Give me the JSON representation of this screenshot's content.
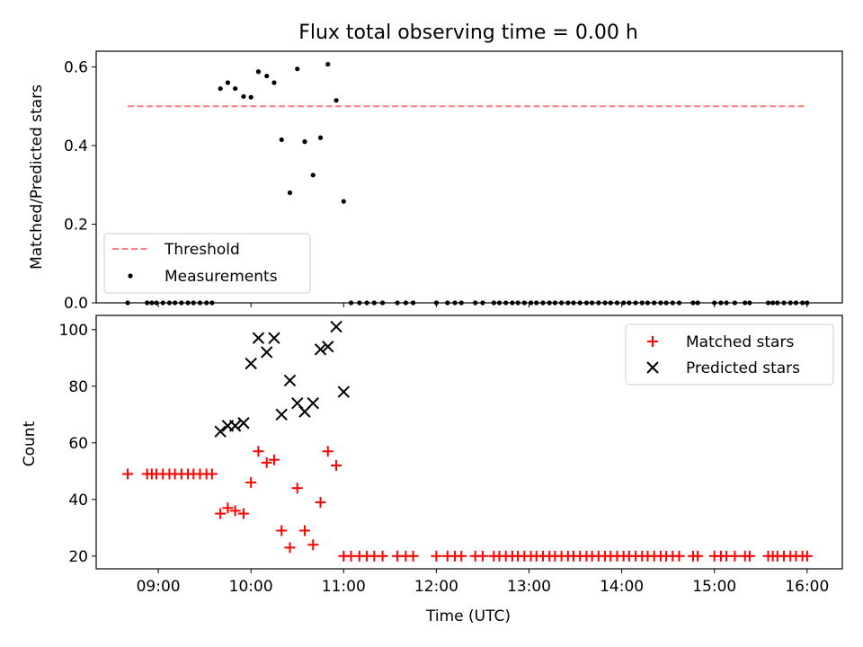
{
  "chart_data": [
    {
      "type": "scatter",
      "title": "Flux total observing time = 0.00 h",
      "xlabel": "",
      "ylabel": "Matched/Predicted stars",
      "xlim": [
        8.33,
        16.38
      ],
      "ylim": [
        0,
        0.64
      ],
      "yticks": [
        0,
        0.2,
        0.4,
        0.6
      ],
      "ytick_labels": [
        "0.0",
        "0.2",
        "0.4",
        "0.6"
      ],
      "threshold": {
        "name": "Threshold",
        "value": 0.5,
        "x_range": [
          8.67,
          16.0
        ],
        "color": "#ff7f7f",
        "style": "dashed"
      },
      "series": [
        {
          "name": "Measurements",
          "color": "#000000",
          "points": [
            [
              8.67,
              0.0
            ],
            [
              8.88,
              0.0
            ],
            [
              8.93,
              0.0
            ],
            [
              8.98,
              0.0
            ],
            [
              9.05,
              0.0
            ],
            [
              9.12,
              0.0
            ],
            [
              9.18,
              0.0
            ],
            [
              9.25,
              0.0
            ],
            [
              9.32,
              0.0
            ],
            [
              9.38,
              0.0
            ],
            [
              9.45,
              0.0
            ],
            [
              9.52,
              0.0
            ],
            [
              9.58,
              0.0
            ],
            [
              9.67,
              0.545
            ],
            [
              9.75,
              0.56
            ],
            [
              9.83,
              0.545
            ],
            [
              9.92,
              0.525
            ],
            [
              10.0,
              0.523
            ],
            [
              10.08,
              0.588
            ],
            [
              10.17,
              0.577
            ],
            [
              10.25,
              0.56
            ],
            [
              10.33,
              0.415
            ],
            [
              10.42,
              0.28
            ],
            [
              10.5,
              0.595
            ],
            [
              10.58,
              0.41
            ],
            [
              10.67,
              0.325
            ],
            [
              10.75,
              0.42
            ],
            [
              10.83,
              0.607
            ],
            [
              10.92,
              0.515
            ],
            [
              11.0,
              0.258
            ],
            [
              11.08,
              0.0
            ],
            [
              11.17,
              0.0
            ],
            [
              11.25,
              0.0
            ],
            [
              11.33,
              0.0
            ],
            [
              11.42,
              0.0
            ],
            [
              11.58,
              0.0
            ],
            [
              11.67,
              0.0
            ],
            [
              11.75,
              0.0
            ],
            [
              12.0,
              0.0
            ],
            [
              12.12,
              0.0
            ],
            [
              12.2,
              0.0
            ],
            [
              12.27,
              0.0
            ],
            [
              12.42,
              0.0
            ],
            [
              12.5,
              0.0
            ],
            [
              12.62,
              0.0
            ],
            [
              12.68,
              0.0
            ],
            [
              12.75,
              0.0
            ],
            [
              12.82,
              0.0
            ],
            [
              12.88,
              0.0
            ],
            [
              12.95,
              0.0
            ],
            [
              13.02,
              0.0
            ],
            [
              13.08,
              0.0
            ],
            [
              13.15,
              0.0
            ],
            [
              13.22,
              0.0
            ],
            [
              13.28,
              0.0
            ],
            [
              13.35,
              0.0
            ],
            [
              13.42,
              0.0
            ],
            [
              13.48,
              0.0
            ],
            [
              13.55,
              0.0
            ],
            [
              13.62,
              0.0
            ],
            [
              13.68,
              0.0
            ],
            [
              13.75,
              0.0
            ],
            [
              13.82,
              0.0
            ],
            [
              13.88,
              0.0
            ],
            [
              13.95,
              0.0
            ],
            [
              14.02,
              0.0
            ],
            [
              14.08,
              0.0
            ],
            [
              14.15,
              0.0
            ],
            [
              14.22,
              0.0
            ],
            [
              14.28,
              0.0
            ],
            [
              14.35,
              0.0
            ],
            [
              14.42,
              0.0
            ],
            [
              14.48,
              0.0
            ],
            [
              14.55,
              0.0
            ],
            [
              14.62,
              0.0
            ],
            [
              14.77,
              0.0
            ],
            [
              14.82,
              0.0
            ],
            [
              15.0,
              0.0
            ],
            [
              15.07,
              0.0
            ],
            [
              15.13,
              0.0
            ],
            [
              15.22,
              0.0
            ],
            [
              15.33,
              0.0
            ],
            [
              15.38,
              0.0
            ],
            [
              15.58,
              0.0
            ],
            [
              15.63,
              0.0
            ],
            [
              15.68,
              0.0
            ],
            [
              15.75,
              0.0
            ],
            [
              15.82,
              0.0
            ],
            [
              15.88,
              0.0
            ],
            [
              15.95,
              0.0
            ],
            [
              16.0,
              0.0
            ]
          ]
        }
      ],
      "legend": {
        "position": "lower-left",
        "entries": [
          "Threshold",
          "Measurements"
        ]
      },
      "grid": false
    },
    {
      "type": "scatter",
      "title": "",
      "xlabel": "Time (UTC)",
      "ylabel": "Count",
      "xlim": [
        8.33,
        16.38
      ],
      "ylim": [
        15.5,
        105
      ],
      "xticks": [
        9,
        10,
        11,
        12,
        13,
        14,
        15,
        16
      ],
      "xtick_labels": [
        "09:00",
        "10:00",
        "11:00",
        "12:00",
        "13:00",
        "14:00",
        "15:00",
        "16:00"
      ],
      "yticks": [
        20,
        40,
        60,
        80,
        100
      ],
      "ytick_labels": [
        "20",
        "40",
        "60",
        "80",
        "100"
      ],
      "series": [
        {
          "name": "Matched stars",
          "marker": "plus",
          "color": "#ff0000",
          "points": [
            [
              8.67,
              49
            ],
            [
              8.88,
              49
            ],
            [
              8.93,
              49
            ],
            [
              8.98,
              49
            ],
            [
              9.05,
              49
            ],
            [
              9.12,
              49
            ],
            [
              9.18,
              49
            ],
            [
              9.25,
              49
            ],
            [
              9.32,
              49
            ],
            [
              9.38,
              49
            ],
            [
              9.45,
              49
            ],
            [
              9.52,
              49
            ],
            [
              9.58,
              49
            ],
            [
              9.67,
              35
            ],
            [
              9.75,
              37
            ],
            [
              9.83,
              36
            ],
            [
              9.92,
              35
            ],
            [
              10.0,
              46
            ],
            [
              10.08,
              57
            ],
            [
              10.17,
              53
            ],
            [
              10.25,
              54
            ],
            [
              10.33,
              29
            ],
            [
              10.42,
              23
            ],
            [
              10.5,
              44
            ],
            [
              10.58,
              29
            ],
            [
              10.67,
              24
            ],
            [
              10.75,
              39
            ],
            [
              10.83,
              57
            ],
            [
              10.92,
              52
            ],
            [
              11.0,
              20
            ],
            [
              11.08,
              20
            ],
            [
              11.17,
              20
            ],
            [
              11.25,
              20
            ],
            [
              11.33,
              20
            ],
            [
              11.42,
              20
            ],
            [
              11.58,
              20
            ],
            [
              11.67,
              20
            ],
            [
              11.75,
              20
            ],
            [
              12.0,
              20
            ],
            [
              12.12,
              20
            ],
            [
              12.2,
              20
            ],
            [
              12.27,
              20
            ],
            [
              12.42,
              20
            ],
            [
              12.5,
              20
            ],
            [
              12.62,
              20
            ],
            [
              12.68,
              20
            ],
            [
              12.75,
              20
            ],
            [
              12.82,
              20
            ],
            [
              12.88,
              20
            ],
            [
              12.95,
              20
            ],
            [
              13.02,
              20
            ],
            [
              13.08,
              20
            ],
            [
              13.15,
              20
            ],
            [
              13.22,
              20
            ],
            [
              13.28,
              20
            ],
            [
              13.35,
              20
            ],
            [
              13.42,
              20
            ],
            [
              13.48,
              20
            ],
            [
              13.55,
              20
            ],
            [
              13.62,
              20
            ],
            [
              13.68,
              20
            ],
            [
              13.75,
              20
            ],
            [
              13.82,
              20
            ],
            [
              13.88,
              20
            ],
            [
              13.95,
              20
            ],
            [
              14.02,
              20
            ],
            [
              14.08,
              20
            ],
            [
              14.15,
              20
            ],
            [
              14.22,
              20
            ],
            [
              14.28,
              20
            ],
            [
              14.35,
              20
            ],
            [
              14.42,
              20
            ],
            [
              14.48,
              20
            ],
            [
              14.55,
              20
            ],
            [
              14.62,
              20
            ],
            [
              14.77,
              20
            ],
            [
              14.82,
              20
            ],
            [
              15.0,
              20
            ],
            [
              15.07,
              20
            ],
            [
              15.13,
              20
            ],
            [
              15.22,
              20
            ],
            [
              15.33,
              20
            ],
            [
              15.38,
              20
            ],
            [
              15.58,
              20
            ],
            [
              15.63,
              20
            ],
            [
              15.68,
              20
            ],
            [
              15.75,
              20
            ],
            [
              15.82,
              20
            ],
            [
              15.88,
              20
            ],
            [
              15.95,
              20
            ],
            [
              16.0,
              20
            ]
          ]
        },
        {
          "name": "Predicted stars",
          "marker": "x",
          "color": "#000000",
          "points": [
            [
              9.67,
              64
            ],
            [
              9.75,
              66
            ],
            [
              9.83,
              66
            ],
            [
              9.92,
              67
            ],
            [
              10.0,
              88
            ],
            [
              10.08,
              97
            ],
            [
              10.17,
              92
            ],
            [
              10.25,
              97
            ],
            [
              10.33,
              70
            ],
            [
              10.42,
              82
            ],
            [
              10.5,
              74
            ],
            [
              10.58,
              71
            ],
            [
              10.67,
              74
            ],
            [
              10.75,
              93
            ],
            [
              10.83,
              94
            ],
            [
              10.92,
              101
            ],
            [
              11.0,
              78
            ]
          ]
        }
      ],
      "legend": {
        "position": "top-right",
        "entries": [
          "Matched stars",
          "Predicted stars"
        ]
      },
      "grid": false
    }
  ]
}
